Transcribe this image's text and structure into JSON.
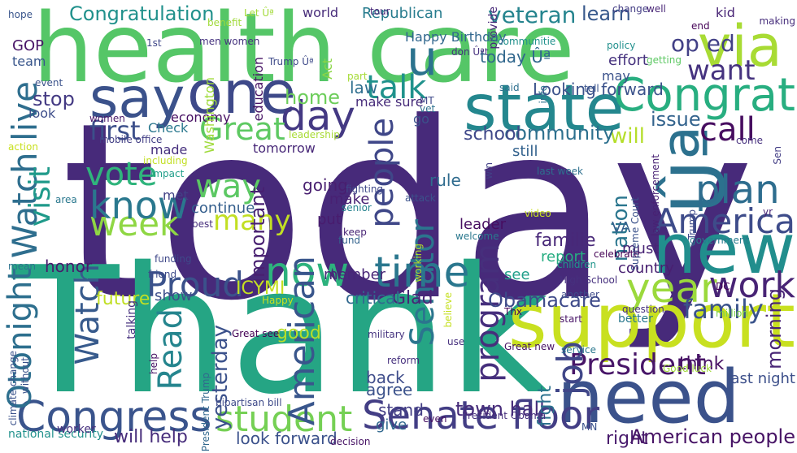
{
  "words": [
    {
      "text": "today",
      "color": "#472a7a"
    },
    {
      "text": "Thank",
      "color": "#25a584"
    },
    {
      "text": "health care",
      "color": "#55c667"
    },
    {
      "text": "support",
      "color": "#c8e020"
    },
    {
      "text": "need",
      "color": "#3b528b"
    },
    {
      "text": "new",
      "color": "#218e8d"
    },
    {
      "text": "Ûª",
      "color": "#2c718e"
    },
    {
      "text": "state",
      "color": "#24878e"
    },
    {
      "text": "via",
      "color": "#a8db34"
    },
    {
      "text": "one",
      "color": "#3e4989"
    },
    {
      "text": "say",
      "color": "#3b528b"
    },
    {
      "text": "u",
      "color": "#2c738e"
    },
    {
      "text": "Senate floor",
      "color": "#433e85"
    },
    {
      "text": "Congress",
      "color": "#3a548c"
    },
    {
      "text": "time",
      "color": "#2a778e"
    },
    {
      "text": "Congrat",
      "color": "#28ae80"
    },
    {
      "text": "plan",
      "color": "#2e6d8e"
    },
    {
      "text": "year",
      "color": "#9bd93c"
    },
    {
      "text": "America",
      "color": "#3e4c8a"
    },
    {
      "text": "work",
      "color": "#482475"
    },
    {
      "text": "President",
      "color": "#481668"
    },
    {
      "text": "day",
      "color": "#443983"
    },
    {
      "text": "student",
      "color": "#75d054"
    },
    {
      "text": "job",
      "color": "#404688"
    },
    {
      "text": "now",
      "color": "#2db27d"
    },
    {
      "text": "Proud",
      "color": "#3b528b"
    },
    {
      "text": "week",
      "color": "#8fd744"
    },
    {
      "text": "know",
      "color": "#2a788e"
    },
    {
      "text": "Watch live",
      "color": "#2e6e8e"
    },
    {
      "text": "Great",
      "color": "#5ec962"
    },
    {
      "text": "vote",
      "color": "#2fb47c"
    },
    {
      "text": "Watch",
      "color": "#375a8c"
    },
    {
      "text": "Read",
      "color": "#25858e"
    },
    {
      "text": "American",
      "color": "#39568c"
    },
    {
      "text": "Senator",
      "color": "#2b758e"
    },
    {
      "text": "program",
      "color": "#462f7c"
    },
    {
      "text": "people",
      "color": "#3f4788"
    },
    {
      "text": "call",
      "color": "#470d60"
    },
    {
      "text": "want",
      "color": "#46337f"
    },
    {
      "text": "talk",
      "color": "#20928c"
    },
    {
      "text": "visit",
      "color": "#1f9a8a"
    },
    {
      "text": "family",
      "color": "#3a538b"
    },
    {
      "text": "morning",
      "color": "#482576"
    },
    {
      "text": "American people",
      "color": "#471365"
    },
    {
      "text": "Otonight",
      "color": "#2d6f8e"
    },
    {
      "text": "many",
      "color": "#c2df23"
    },
    {
      "text": "way",
      "color": "#5cc863"
    },
    {
      "text": "first",
      "color": "#3c4f8a"
    },
    {
      "text": "veteran",
      "color": "#25848e"
    },
    {
      "text": "Congratulation",
      "color": "#21918c"
    },
    {
      "text": "learn",
      "color": "#38598c"
    },
    {
      "text": "op ed",
      "color": "#424086"
    },
    {
      "text": "will",
      "color": "#b5de2b"
    },
    {
      "text": "home",
      "color": "#6ccd5a"
    },
    {
      "text": "stop",
      "color": "#443a83"
    },
    {
      "text": "community",
      "color": "#2d708e"
    },
    {
      "text": "yesterday",
      "color": "#3b518b"
    },
    {
      "text": "important",
      "color": "#482071"
    },
    {
      "text": "nation",
      "color": "#2a768e"
    },
    {
      "text": "issue",
      "color": "#33638d"
    },
    {
      "text": "town hall",
      "color": "#472c7a"
    },
    {
      "text": "Obamacare",
      "color": "#3e4a89"
    },
    {
      "text": "ICYMI",
      "color": "#c5e021"
    },
    {
      "text": "will help",
      "color": "#472d7b"
    },
    {
      "text": "right",
      "color": "#481a6c"
    },
    {
      "text": "look forward",
      "color": "#3b518b"
    },
    {
      "text": "think",
      "color": "#471164"
    },
    {
      "text": "last night",
      "color": "#3c4f8a"
    },
    {
      "text": "must",
      "color": "#482475"
    },
    {
      "text": "country",
      "color": "#482071"
    },
    {
      "text": "report",
      "color": "#26ad81"
    },
    {
      "text": "familie",
      "color": "#482878"
    },
    {
      "text": "see",
      "color": "#1f9e89"
    },
    {
      "text": "fight",
      "color": "#2c728e"
    },
    {
      "text": "back",
      "color": "#3e4c8a"
    },
    {
      "text": "agree",
      "color": "#3b528b"
    },
    {
      "text": "stand",
      "color": "#433e85"
    },
    {
      "text": "give",
      "color": "#31688e"
    },
    {
      "text": "good",
      "color": "#b8de29"
    },
    {
      "text": "law",
      "color": "#2e6e8e"
    },
    {
      "text": "Looking forward",
      "color": "#3b528b"
    },
    {
      "text": "school",
      "color": "#3f4889"
    },
    {
      "text": "still",
      "color": "#33628d"
    },
    {
      "text": "rule",
      "color": "#2f6b8e"
    },
    {
      "text": "leader",
      "color": "#470e61"
    },
    {
      "text": "VA",
      "color": "#35608d"
    },
    {
      "text": "Glad",
      "color": "#482475"
    },
    {
      "text": "critical",
      "color": "#31688e"
    },
    {
      "text": "member",
      "color": "#482677"
    },
    {
      "text": "going",
      "color": "#481f70"
    },
    {
      "text": "put",
      "color": "#481c6e"
    },
    {
      "text": "make",
      "color": "#482173"
    },
    {
      "text": "future",
      "color": "#c0df25"
    },
    {
      "text": "show",
      "color": "#3d4e8a"
    },
    {
      "text": "honor",
      "color": "#481a6c"
    },
    {
      "text": "Check",
      "color": "#2a788e"
    },
    {
      "text": "economy",
      "color": "#471063"
    },
    {
      "text": "made",
      "color": "#46307e"
    },
    {
      "text": "met",
      "color": "#424186"
    },
    {
      "text": "continue",
      "color": "#355f8d"
    },
    {
      "text": "tomorrow",
      "color": "#482878"
    },
    {
      "text": "today Ûª",
      "color": "#30678d"
    },
    {
      "text": "effort",
      "color": "#46327e"
    },
    {
      "text": "may",
      "color": "#3b528b"
    },
    {
      "text": "kid",
      "color": "#482475"
    },
    {
      "text": "provide",
      "color": "#482979"
    },
    {
      "text": "Republican",
      "color": "#287c8e"
    },
    {
      "text": "world",
      "color": "#472c7a"
    },
    {
      "text": "team",
      "color": "#39568c"
    },
    {
      "text": "GOP",
      "color": "#481467"
    },
    {
      "text": "look",
      "color": "#3d4d8a"
    },
    {
      "text": "hope",
      "color": "#39558c"
    },
    {
      "text": "Let Ûª",
      "color": "#a2da37"
    },
    {
      "text": "benefit",
      "color": "#a0da39"
    },
    {
      "text": "change",
      "color": "#433d84"
    },
    {
      "text": "well",
      "color": "#482576"
    },
    {
      "text": "making",
      "color": "#472e7c"
    },
    {
      "text": "end",
      "color": "#440256"
    },
    {
      "text": "policy",
      "color": "#21908d"
    },
    {
      "text": "getting",
      "color": "#5dc863"
    },
    {
      "text": "communitie",
      "color": "#21918c"
    },
    {
      "text": "Happy Birthday",
      "color": "#31678e"
    },
    {
      "text": "don Ûªt",
      "color": "#46307e"
    },
    {
      "text": "tour",
      "color": "#482979"
    },
    {
      "text": "men women",
      "color": "#46337f"
    },
    {
      "text": "Trump Ûª",
      "color": "#3e4a89"
    },
    {
      "text": "1st",
      "color": "#3f4788"
    },
    {
      "text": "education",
      "color": "#471365"
    },
    {
      "text": "Act",
      "color": "#8bd646"
    },
    {
      "text": "Washington",
      "color": "#9fda3a"
    },
    {
      "text": "part",
      "color": "#a5db36"
    },
    {
      "text": "said",
      "color": "#2d708e"
    },
    {
      "text": "tell",
      "color": "#3a548c"
    },
    {
      "text": "info",
      "color": "#2c728e"
    },
    {
      "text": "MT",
      "color": "#3e4989"
    },
    {
      "text": "vet",
      "color": "#2d718e"
    },
    {
      "text": "make sure",
      "color": "#472c7a"
    },
    {
      "text": "go",
      "color": "#3b528b"
    },
    {
      "text": "event",
      "color": "#3b528b"
    },
    {
      "text": "women",
      "color": "#481769"
    },
    {
      "text": "mobile office",
      "color": "#423f85"
    },
    {
      "text": "leadership",
      "color": "#a8db34"
    },
    {
      "text": "including",
      "color": "#c2df23"
    },
    {
      "text": "impact",
      "color": "#1f9e89"
    },
    {
      "text": "fighting",
      "color": "#3f4889"
    },
    {
      "text": "senior",
      "color": "#26828e"
    },
    {
      "text": "keep",
      "color": "#482475"
    },
    {
      "text": "fund",
      "color": "#33638d"
    },
    {
      "text": "best",
      "color": "#472f7d"
    },
    {
      "text": "funding",
      "color": "#3f4889"
    },
    {
      "text": "friend",
      "color": "#3e4a89"
    },
    {
      "text": "Happy",
      "color": "#c8e020"
    },
    {
      "text": "Great see",
      "color": "#440154"
    },
    {
      "text": "military",
      "color": "#463480"
    },
    {
      "text": "reform",
      "color": "#46307e"
    },
    {
      "text": "believe",
      "color": "#c5e021"
    },
    {
      "text": "President Obama",
      "color": "#472f7d"
    },
    {
      "text": "decision",
      "color": "#471365"
    },
    {
      "text": "even",
      "color": "#470e61"
    },
    {
      "text": "use",
      "color": "#46307e"
    },
    {
      "text": "attack",
      "color": "#3b528b"
    },
    {
      "text": "win",
      "color": "#424086"
    },
    {
      "text": "video",
      "color": "#c8e020"
    },
    {
      "text": "children",
      "color": "#1f958b"
    },
    {
      "text": "celebrate",
      "color": "#440154"
    },
    {
      "text": "High School",
      "color": "#46307e"
    },
    {
      "text": "another",
      "color": "#3e4a89"
    },
    {
      "text": "Thx",
      "color": "#450559"
    },
    {
      "text": "start",
      "color": "#481467"
    },
    {
      "text": "Great new",
      "color": "#471365"
    },
    {
      "text": "service",
      "color": "#2a778e"
    },
    {
      "text": "MN",
      "color": "#3b528b"
    },
    {
      "text": "Good luck",
      "color": "#a0da39"
    },
    {
      "text": "DC",
      "color": "#440154"
    },
    {
      "text": "question",
      "color": "#46307e"
    },
    {
      "text": "better",
      "color": "#2a788e"
    },
    {
      "text": "million",
      "color": "#7ad151"
    },
    {
      "text": "government",
      "color": "#287c8e"
    },
    {
      "text": "law enforcement",
      "color": "#482173"
    },
    {
      "text": "Supreme Court",
      "color": "#3b528b"
    },
    {
      "text": "yr",
      "color": "#482475"
    },
    {
      "text": "Trump",
      "color": "#3e4a89"
    },
    {
      "text": "come",
      "color": "#46307e"
    },
    {
      "text": "Sen",
      "color": "#433e85"
    },
    {
      "text": "welcome",
      "color": "#2a788e"
    },
    {
      "text": "working",
      "color": "#b5de2b"
    },
    {
      "text": "last week",
      "color": "#2d708e"
    },
    {
      "text": "talking",
      "color": "#46307e"
    },
    {
      "text": "President Trump",
      "color": "#31688e"
    },
    {
      "text": "bipartisan bill",
      "color": "#3e4a89"
    },
    {
      "text": "help",
      "color": "#471365"
    },
    {
      "text": "without",
      "color": "#3b528b"
    },
    {
      "text": "climate change",
      "color": "#3b528b"
    },
    {
      "text": "national security",
      "color": "#21918c"
    },
    {
      "text": "worker",
      "color": "#46307e"
    },
    {
      "text": "mean",
      "color": "#2c728e"
    },
    {
      "text": "action",
      "color": "#c8e020"
    },
    {
      "text": "area",
      "color": "#2a788e"
    },
    {
      "text": "re",
      "color": "#46307e"
    }
  ]
}
